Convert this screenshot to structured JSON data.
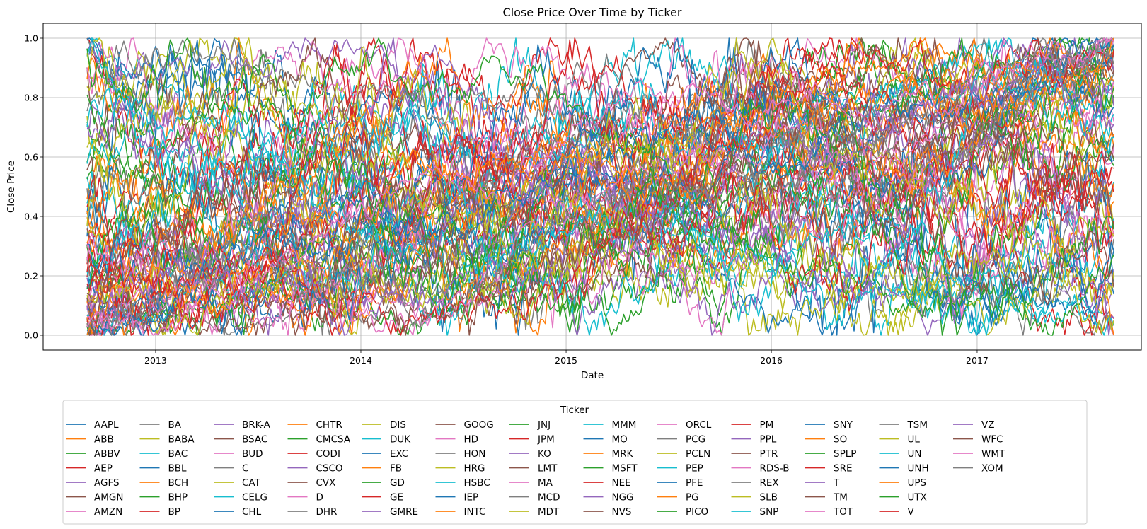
{
  "chart_data": {
    "type": "line",
    "title": "Close Price Over Time by Ticker",
    "xlabel": "Date",
    "ylabel": "Close Price",
    "x_range": [
      "2012-06-15",
      "2017-10-20"
    ],
    "x_data_range": [
      "2012-09-01",
      "2017-09-01"
    ],
    "ylim": [
      -0.05,
      1.05
    ],
    "x_ticks": [
      "2013",
      "2014",
      "2015",
      "2016",
      "2017"
    ],
    "y_ticks": [
      "0.0",
      "0.2",
      "0.4",
      "0.6",
      "0.8",
      "1.0"
    ],
    "grid": true,
    "legend": {
      "title": "Ticker",
      "placement": "below plot",
      "columns": 14
    },
    "series": [
      {
        "name": "AAPL",
        "color": "#1f77b4"
      },
      {
        "name": "ABB",
        "color": "#ff7f0e"
      },
      {
        "name": "ABBV",
        "color": "#2ca02c"
      },
      {
        "name": "AEP",
        "color": "#d62728"
      },
      {
        "name": "AGFS",
        "color": "#9467bd"
      },
      {
        "name": "AMGN",
        "color": "#8c564b"
      },
      {
        "name": "AMZN",
        "color": "#e377c2"
      },
      {
        "name": "BA",
        "color": "#7f7f7f"
      },
      {
        "name": "BABA",
        "color": "#bcbd22"
      },
      {
        "name": "BAC",
        "color": "#17becf"
      },
      {
        "name": "BBL",
        "color": "#1f77b4"
      },
      {
        "name": "BCH",
        "color": "#ff7f0e"
      },
      {
        "name": "BHP",
        "color": "#2ca02c"
      },
      {
        "name": "BP",
        "color": "#d62728"
      },
      {
        "name": "BRK-A",
        "color": "#9467bd"
      },
      {
        "name": "BSAC",
        "color": "#8c564b"
      },
      {
        "name": "BUD",
        "color": "#e377c2"
      },
      {
        "name": "C",
        "color": "#7f7f7f"
      },
      {
        "name": "CAT",
        "color": "#bcbd22"
      },
      {
        "name": "CELG",
        "color": "#17becf"
      },
      {
        "name": "CHL",
        "color": "#1f77b4"
      },
      {
        "name": "CHTR",
        "color": "#ff7f0e"
      },
      {
        "name": "CMCSA",
        "color": "#2ca02c"
      },
      {
        "name": "CODI",
        "color": "#d62728"
      },
      {
        "name": "CSCO",
        "color": "#9467bd"
      },
      {
        "name": "CVX",
        "color": "#8c564b"
      },
      {
        "name": "D",
        "color": "#e377c2"
      },
      {
        "name": "DHR",
        "color": "#7f7f7f"
      },
      {
        "name": "DIS",
        "color": "#bcbd22"
      },
      {
        "name": "DUK",
        "color": "#17becf"
      },
      {
        "name": "EXC",
        "color": "#1f77b4"
      },
      {
        "name": "FB",
        "color": "#ff7f0e"
      },
      {
        "name": "GD",
        "color": "#2ca02c"
      },
      {
        "name": "GE",
        "color": "#d62728"
      },
      {
        "name": "GMRE",
        "color": "#9467bd"
      },
      {
        "name": "GOOG",
        "color": "#8c564b"
      },
      {
        "name": "HD",
        "color": "#e377c2"
      },
      {
        "name": "HON",
        "color": "#7f7f7f"
      },
      {
        "name": "HRG",
        "color": "#bcbd22"
      },
      {
        "name": "HSBC",
        "color": "#17becf"
      },
      {
        "name": "IEP",
        "color": "#1f77b4"
      },
      {
        "name": "INTC",
        "color": "#ff7f0e"
      },
      {
        "name": "JNJ",
        "color": "#2ca02c"
      },
      {
        "name": "JPM",
        "color": "#d62728"
      },
      {
        "name": "KO",
        "color": "#9467bd"
      },
      {
        "name": "LMT",
        "color": "#8c564b"
      },
      {
        "name": "MA",
        "color": "#e377c2"
      },
      {
        "name": "MCD",
        "color": "#7f7f7f"
      },
      {
        "name": "MDT",
        "color": "#bcbd22"
      },
      {
        "name": "MMM",
        "color": "#17becf"
      },
      {
        "name": "MO",
        "color": "#1f77b4"
      },
      {
        "name": "MRK",
        "color": "#ff7f0e"
      },
      {
        "name": "MSFT",
        "color": "#2ca02c"
      },
      {
        "name": "NEE",
        "color": "#d62728"
      },
      {
        "name": "NGG",
        "color": "#9467bd"
      },
      {
        "name": "NVS",
        "color": "#8c564b"
      },
      {
        "name": "ORCL",
        "color": "#e377c2"
      },
      {
        "name": "PCG",
        "color": "#7f7f7f"
      },
      {
        "name": "PCLN",
        "color": "#bcbd22"
      },
      {
        "name": "PEP",
        "color": "#17becf"
      },
      {
        "name": "PFE",
        "color": "#1f77b4"
      },
      {
        "name": "PG",
        "color": "#ff7f0e"
      },
      {
        "name": "PICO",
        "color": "#2ca02c"
      },
      {
        "name": "PM",
        "color": "#d62728"
      },
      {
        "name": "PPL",
        "color": "#9467bd"
      },
      {
        "name": "PTR",
        "color": "#8c564b"
      },
      {
        "name": "RDS-B",
        "color": "#e377c2"
      },
      {
        "name": "REX",
        "color": "#7f7f7f"
      },
      {
        "name": "SLB",
        "color": "#bcbd22"
      },
      {
        "name": "SNP",
        "color": "#17becf"
      },
      {
        "name": "SNY",
        "color": "#1f77b4"
      },
      {
        "name": "SO",
        "color": "#ff7f0e"
      },
      {
        "name": "SPLP",
        "color": "#2ca02c"
      },
      {
        "name": "SRE",
        "color": "#d62728"
      },
      {
        "name": "T",
        "color": "#9467bd"
      },
      {
        "name": "TM",
        "color": "#8c564b"
      },
      {
        "name": "TOT",
        "color": "#e377c2"
      },
      {
        "name": "TSM",
        "color": "#7f7f7f"
      },
      {
        "name": "UL",
        "color": "#bcbd22"
      },
      {
        "name": "UN",
        "color": "#17becf"
      },
      {
        "name": "UNH",
        "color": "#1f77b4"
      },
      {
        "name": "UPS",
        "color": "#ff7f0e"
      },
      {
        "name": "UTX",
        "color": "#2ca02c"
      },
      {
        "name": "V",
        "color": "#d62728"
      },
      {
        "name": "VZ",
        "color": "#9467bd"
      },
      {
        "name": "WFC",
        "color": "#8c564b"
      },
      {
        "name": "WMT",
        "color": "#e377c2"
      },
      {
        "name": "XOM",
        "color": "#7f7f7f"
      }
    ]
  }
}
